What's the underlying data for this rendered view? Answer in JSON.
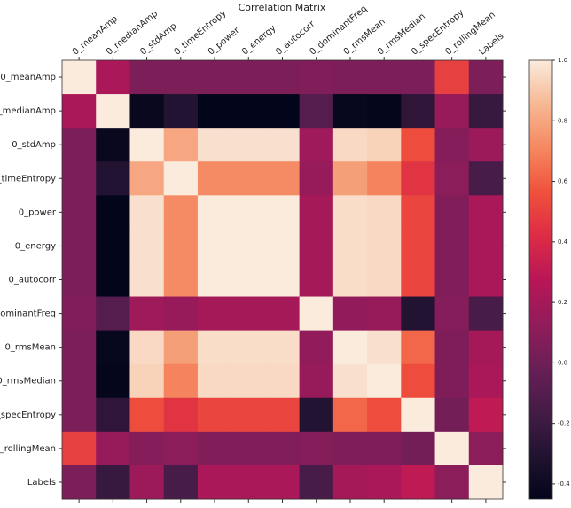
{
  "chart_data": {
    "type": "heatmap",
    "title": "Correlation Matrix",
    "categories": [
      "0_meanAmp",
      "0_medianAmp",
      "0_stdAmp",
      "0_timeEntropy",
      "0_power",
      "0_energy",
      "0_autocorr",
      "0_dominantFreq",
      "0_rmsMean",
      "0_rmsMedian",
      "0_specEntropy",
      "0_rollingMean",
      "Labels"
    ],
    "matrix": [
      [
        1,
        0.22,
        0.05,
        0.05,
        0.05,
        0.05,
        0.05,
        0.07,
        0.05,
        0.05,
        0.05,
        0.5,
        0.05
      ],
      [
        0.22,
        1,
        -0.42,
        -0.3,
        -0.45,
        -0.45,
        -0.45,
        -0.1,
        -0.43,
        -0.44,
        -0.25,
        0.15,
        -0.22
      ],
      [
        0.05,
        -0.42,
        1,
        0.8,
        0.97,
        0.97,
        0.97,
        0.18,
        0.95,
        0.93,
        0.55,
        0.08,
        0.17
      ],
      [
        0.05,
        -0.3,
        0.8,
        1,
        0.72,
        0.72,
        0.72,
        0.15,
        0.78,
        0.7,
        0.45,
        0.1,
        -0.15
      ],
      [
        0.05,
        -0.45,
        0.97,
        0.72,
        1,
        1,
        1,
        0.2,
        0.96,
        0.95,
        0.52,
        0.07,
        0.22
      ],
      [
        0.05,
        -0.45,
        0.97,
        0.72,
        1,
        1,
        1,
        0.2,
        0.96,
        0.95,
        0.52,
        0.07,
        0.22
      ],
      [
        0.05,
        -0.45,
        0.97,
        0.72,
        1,
        1,
        1,
        0.2,
        0.96,
        0.95,
        0.52,
        0.07,
        0.22
      ],
      [
        0.07,
        -0.1,
        0.18,
        0.15,
        0.2,
        0.2,
        0.2,
        1,
        0.13,
        0.15,
        -0.3,
        0.08,
        -0.15
      ],
      [
        0.05,
        -0.43,
        0.95,
        0.78,
        0.96,
        0.96,
        0.96,
        0.13,
        1,
        0.97,
        0.62,
        0.06,
        0.2
      ],
      [
        0.05,
        -0.44,
        0.93,
        0.7,
        0.95,
        0.95,
        0.95,
        0.15,
        0.97,
        1,
        0.55,
        0.06,
        0.22
      ],
      [
        0.05,
        -0.25,
        0.55,
        0.45,
        0.52,
        0.52,
        0.52,
        -0.3,
        0.62,
        0.55,
        1,
        0.02,
        0.3
      ],
      [
        0.5,
        0.15,
        0.08,
        0.1,
        0.07,
        0.07,
        0.07,
        0.08,
        0.06,
        0.06,
        0.02,
        1,
        0.1
      ],
      [
        0.05,
        -0.22,
        0.17,
        -0.15,
        0.22,
        0.22,
        0.22,
        -0.15,
        0.2,
        0.22,
        0.3,
        0.1,
        1
      ]
    ],
    "zlim": [
      -0.45,
      1.0
    ],
    "zticks": [
      -0.4,
      -0.2,
      {
        "value": 0,
        "label": "0.0"
      },
      0.2,
      0.4,
      0.6,
      0.8,
      {
        "value": 1,
        "label": "1.0"
      }
    ],
    "colormap": [
      "#03051a",
      "#221331",
      "#451c47",
      "#6a1f56",
      "#921c5b",
      "#b91657",
      "#dd2c45",
      "#f0513c",
      "#f58860",
      "#f6b893",
      "#faebdd"
    ]
  }
}
